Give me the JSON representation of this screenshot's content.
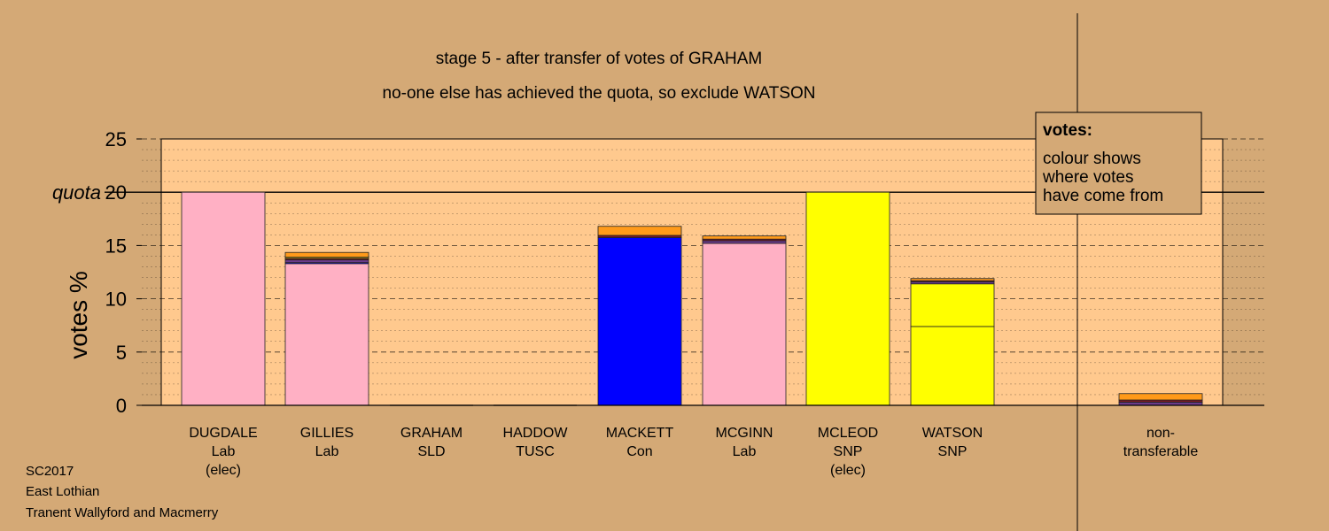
{
  "chart_data": {
    "type": "bar",
    "stacked": true,
    "title": "stage 5 - after transfer of votes of GRAHAM",
    "subtitle": "no-one else has achieved the quota, so exclude WATSON",
    "ylabel": "votes %",
    "ylim": [
      0,
      25
    ],
    "yticks": [
      0,
      5,
      10,
      15,
      20,
      25
    ],
    "quota": 20,
    "quota_label": "quota",
    "grid": true,
    "colors": {
      "background": "#D4A976",
      "plot_area": "#FFC98E",
      "Lab": "#FFB0C4",
      "Con": "#0000FF",
      "SNP": "#FFFF00",
      "SLD": "#FF9A1A",
      "TUSC": "#7A1A24",
      "mixed": "#6A3A8A"
    },
    "legend": {
      "position": "top-right",
      "title": "votes:",
      "lines": [
        "colour shows",
        "where votes",
        "have come from"
      ]
    },
    "candidates": [
      {
        "name": "DUGDALE",
        "party": "Lab",
        "note": "(elec)",
        "segments": [
          {
            "source": "Lab",
            "value": 20.0
          }
        ]
      },
      {
        "name": "GILLIES",
        "party": "Lab",
        "note": "",
        "segments": [
          {
            "source": "Lab",
            "value": 13.3
          },
          {
            "source": "Con",
            "value": 0.1
          },
          {
            "source": "mixed",
            "value": 0.25
          },
          {
            "source": "TUSC",
            "value": 0.15
          },
          {
            "source": "SNP",
            "value": 0.1
          },
          {
            "source": "SLD",
            "value": 0.45
          }
        ]
      },
      {
        "name": "GRAHAM",
        "party": "SLD",
        "note": "",
        "segments": []
      },
      {
        "name": "HADDOW",
        "party": "TUSC",
        "note": "",
        "segments": []
      },
      {
        "name": "MACKETT",
        "party": "Con",
        "note": "",
        "segments": [
          {
            "source": "Con",
            "value": 15.75
          },
          {
            "source": "TUSC",
            "value": 0.2
          },
          {
            "source": "SLD",
            "value": 0.85
          }
        ]
      },
      {
        "name": "MCGINN",
        "party": "Lab",
        "note": "",
        "segments": [
          {
            "source": "Lab",
            "value": 15.2
          },
          {
            "source": "mixed",
            "value": 0.25
          },
          {
            "source": "TUSC",
            "value": 0.15
          },
          {
            "source": "SLD",
            "value": 0.3
          }
        ]
      },
      {
        "name": "MCLEOD",
        "party": "SNP",
        "note": "(elec)",
        "segments": [
          {
            "source": "SNP",
            "value": 20.0
          }
        ]
      },
      {
        "name": "WATSON",
        "party": "SNP",
        "note": "",
        "segments": [
          {
            "source": "SNP",
            "value": 7.4
          },
          {
            "source": "SNP",
            "value": 4.0
          },
          {
            "source": "mixed",
            "value": 0.2
          },
          {
            "source": "TUSC",
            "value": 0.1
          },
          {
            "source": "SLD",
            "value": 0.2
          }
        ]
      }
    ],
    "non_transferable": {
      "label_lines": [
        "non-",
        "transferable"
      ],
      "segments": [
        {
          "source": "mixed",
          "value": 0.3
        },
        {
          "source": "TUSC",
          "value": 0.2
        },
        {
          "source": "SLD",
          "value": 0.6
        }
      ]
    }
  },
  "footer": {
    "lines": [
      "SC2017",
      "East Lothian",
      "Tranent Wallyford and Macmerry"
    ]
  }
}
